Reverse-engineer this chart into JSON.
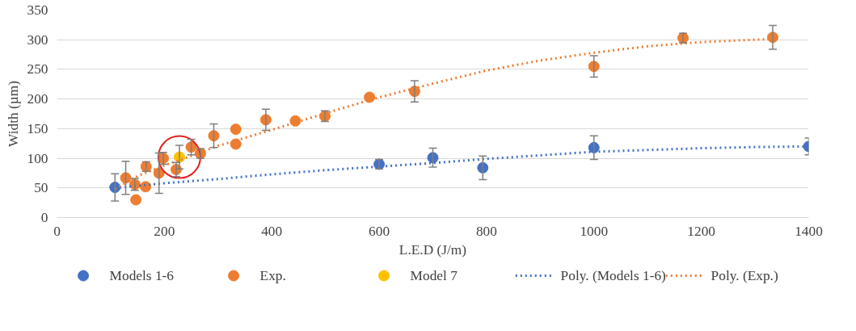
{
  "chart_data": {
    "type": "scatter",
    "xlabel": "L.E.D (J/m)",
    "ylabel": "Width (µm)",
    "xlim": [
      0,
      1400
    ],
    "ylim": [
      0,
      350
    ],
    "xticks": [
      0,
      200,
      400,
      600,
      800,
      1000,
      1200,
      1400
    ],
    "yticks": [
      0,
      50,
      100,
      150,
      200,
      250,
      300,
      350
    ],
    "grid": "y",
    "legend": "bottom",
    "marker": "circle",
    "series": [
      {
        "name": "Models 1-6",
        "color": "#4472c4",
        "x": [
          108,
          600,
          700,
          793,
          1000,
          1400
        ],
        "values": [
          51,
          90,
          101,
          84,
          118,
          120
        ],
        "errors": [
          23,
          8,
          16,
          20,
          20,
          14
        ]
      },
      {
        "name": "Exp.",
        "color": "#ed7d31",
        "x": [
          128,
          145,
          147,
          165,
          166,
          190,
          198,
          222,
          250,
          267,
          292,
          333,
          333,
          389,
          444,
          499,
          582,
          666,
          1000,
          1166,
          1333
        ],
        "values": [
          67,
          56,
          30,
          52,
          86,
          75,
          100,
          81,
          119,
          108,
          138,
          149,
          124,
          165,
          163,
          171,
          203,
          213,
          255,
          303,
          304
        ],
        "errors": [
          28,
          10,
          null,
          null,
          8,
          34,
          10,
          12,
          13,
          8,
          20,
          null,
          null,
          18,
          null,
          9,
          null,
          18,
          18,
          8,
          20
        ]
      },
      {
        "name": "Model 7",
        "color": "#ffc000",
        "x": [
          228
        ],
        "values": [
          102
        ],
        "errors": [
          20
        ]
      },
      {
        "name": "Poly. (Models 1-6)",
        "type": "line",
        "marker": "none",
        "line_style": "dotted",
        "color": "#4472c4",
        "x": [
          108,
          200,
          300,
          400,
          500,
          600,
          700,
          800,
          900,
          1000,
          1100,
          1200,
          1300,
          1400
        ],
        "values": [
          50,
          58,
          65,
          73,
          80,
          86,
          92,
          99,
          105,
          111,
          114,
          117,
          119,
          120
        ]
      },
      {
        "name": "Poly. (Exp.)",
        "type": "line",
        "marker": "none",
        "line_style": "dotted",
        "color": "#ed7d31",
        "x": [
          108,
          150,
          200,
          250,
          300,
          400,
          500,
          600,
          700,
          800,
          900,
          1000,
          1100,
          1200,
          1300,
          1333
        ],
        "values": [
          48,
          70,
          88,
          104,
          121,
          148,
          176,
          203,
          226,
          248,
          265,
          278,
          289,
          296,
          300,
          301
        ]
      }
    ]
  }
}
